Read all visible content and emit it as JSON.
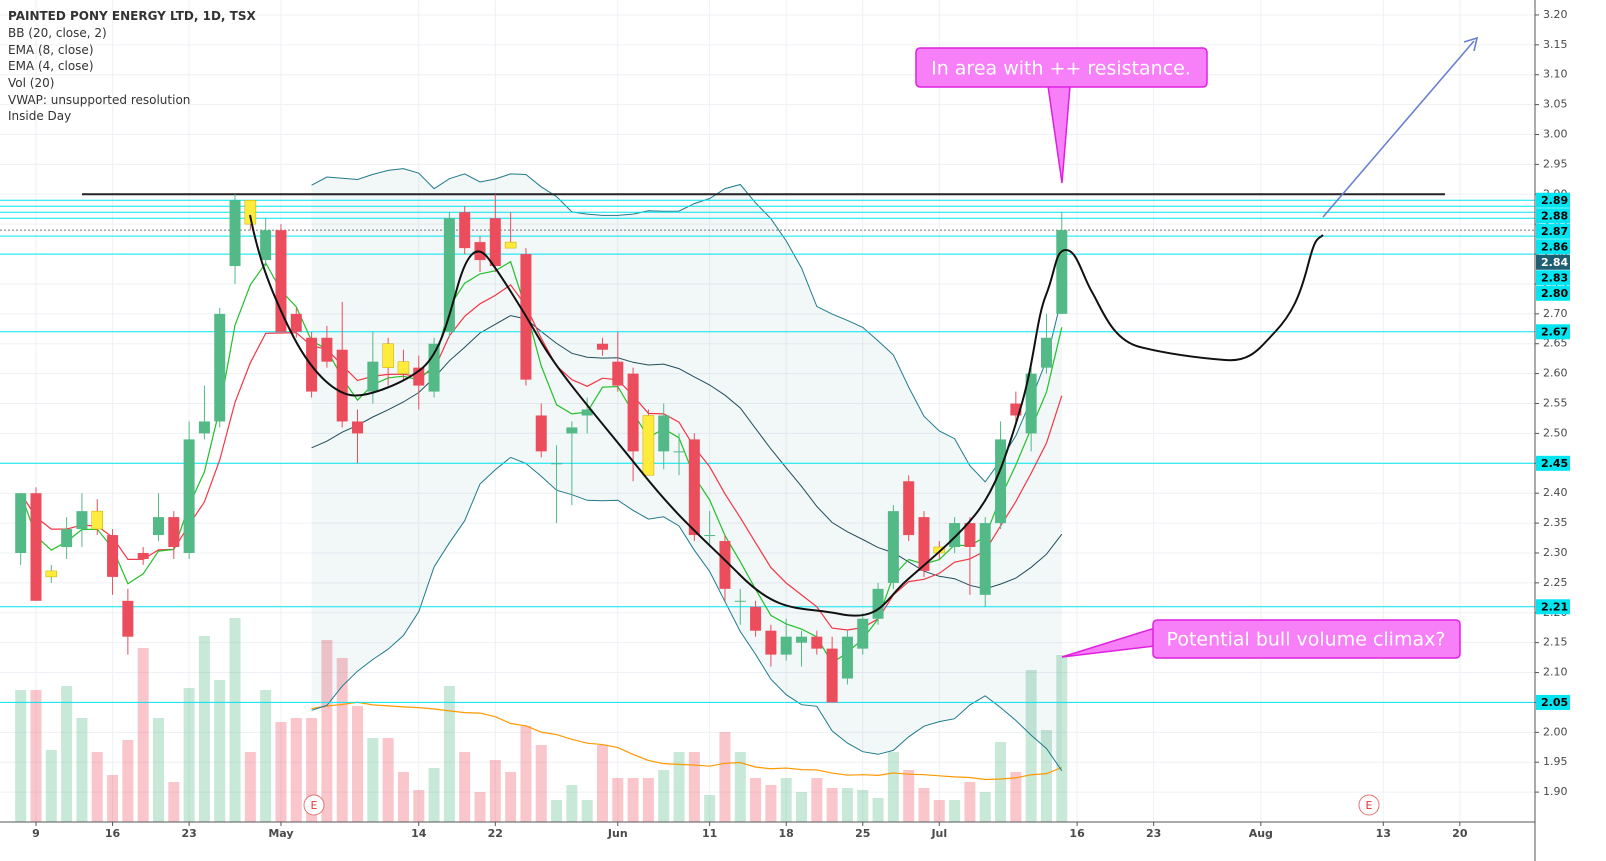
{
  "chart_data": {
    "type": "candlestick",
    "legend_lines": [
      "PAINTED PONY ENERGY LTD, 1D, TSX",
      "BB (20, close, 2)",
      "EMA (8, close)",
      "EMA (4, close)",
      "Vol (20)",
      "VWAP: unsupported resolution",
      "Inside Day"
    ],
    "annotations": [
      "In area with ++ resistance.",
      "Potential bull volume climax?"
    ],
    "earnings_marks": [
      "E",
      "E"
    ],
    "categories": [
      null,
      "9",
      null,
      null,
      null,
      null,
      "16",
      null,
      null,
      null,
      null,
      "23",
      null,
      null,
      null,
      null,
      null,
      "May",
      null,
      null,
      null,
      null,
      null,
      null,
      null,
      null,
      "14",
      null,
      null,
      null,
      null,
      "22",
      null,
      null,
      null,
      null,
      null,
      null,
      null,
      "Jun",
      null,
      null,
      null,
      null,
      null,
      "11",
      null,
      null,
      null,
      null,
      "18",
      null,
      null,
      null,
      null,
      "25",
      null,
      null,
      null,
      null,
      "Jul",
      null,
      null,
      null,
      null,
      null,
      null,
      null,
      null,
      "16",
      null,
      null,
      null,
      null,
      "23",
      null,
      null,
      null,
      null,
      null,
      null,
      "Aug",
      null,
      null,
      null,
      null,
      null,
      null,
      null,
      "13",
      null,
      null,
      null,
      null,
      "20",
      null,
      null,
      null,
      null
    ],
    "open": [
      2.3,
      2.4,
      2.26,
      2.31,
      2.34,
      2.37,
      2.33,
      2.22,
      2.3,
      2.33,
      2.36,
      2.3,
      2.5,
      2.52,
      2.78,
      2.89,
      2.79,
      2.84,
      2.7,
      2.66,
      2.66,
      2.64,
      2.52,
      2.57,
      2.65,
      2.62,
      2.61,
      2.57,
      2.67,
      2.87,
      2.82,
      2.86,
      2.82,
      2.8,
      2.53,
      2.45,
      2.5,
      2.53,
      2.65,
      2.62,
      2.6,
      2.53,
      2.47,
      2.47,
      2.49,
      2.33,
      2.32,
      2.22,
      2.21,
      2.17,
      2.13,
      2.15,
      2.16,
      2.14,
      2.09,
      2.14,
      2.19,
      2.25,
      2.42,
      2.36,
      2.31,
      2.31,
      2.35,
      2.23,
      2.35,
      2.55,
      2.5,
      2.61,
      2.7,
      null,
      null,
      null,
      null,
      null,
      null,
      null,
      null,
      null,
      null,
      null,
      null,
      null,
      null,
      null,
      null,
      null,
      null,
      null,
      null,
      null,
      null,
      null,
      null,
      null,
      null,
      null,
      null,
      null,
      null
    ],
    "high": [
      2.4,
      2.41,
      2.28,
      2.36,
      2.4,
      2.39,
      2.34,
      2.24,
      2.31,
      2.4,
      2.37,
      2.52,
      2.58,
      2.71,
      2.9,
      2.89,
      2.86,
      2.85,
      2.71,
      2.67,
      2.68,
      2.72,
      2.54,
      2.67,
      2.66,
      2.64,
      2.63,
      2.66,
      2.87,
      2.88,
      2.83,
      2.9,
      2.87,
      2.81,
      2.55,
      2.48,
      2.52,
      2.56,
      2.66,
      2.67,
      2.61,
      2.54,
      2.55,
      2.5,
      2.5,
      2.37,
      2.33,
      2.24,
      2.22,
      2.18,
      2.19,
      2.17,
      2.17,
      2.16,
      2.17,
      2.2,
      2.25,
      2.38,
      2.43,
      2.37,
      2.32,
      2.36,
      2.36,
      2.36,
      2.52,
      2.57,
      2.61,
      2.7,
      2.87,
      null,
      null,
      null,
      null,
      null,
      null,
      null,
      null,
      null,
      null,
      null,
      null,
      null,
      null,
      null,
      null,
      null,
      null,
      null,
      null,
      null,
      null,
      null,
      null,
      null,
      null,
      null,
      null,
      null,
      null
    ],
    "low": [
      2.28,
      2.22,
      2.25,
      2.29,
      2.31,
      2.33,
      2.23,
      2.13,
      2.28,
      2.32,
      2.29,
      2.29,
      2.49,
      2.51,
      2.75,
      2.84,
      2.78,
      2.67,
      2.66,
      2.56,
      2.61,
      2.51,
      2.45,
      2.55,
      2.58,
      2.59,
      2.54,
      2.56,
      2.66,
      2.8,
      2.77,
      2.77,
      2.81,
      2.58,
      2.46,
      2.35,
      2.38,
      2.5,
      2.63,
      2.57,
      2.42,
      2.43,
      2.44,
      2.43,
      2.32,
      2.31,
      2.22,
      2.18,
      2.16,
      2.11,
      2.12,
      2.11,
      2.13,
      2.05,
      2.08,
      2.13,
      2.18,
      2.24,
      2.32,
      2.26,
      2.29,
      2.3,
      2.23,
      2.21,
      2.34,
      2.52,
      2.47,
      2.6,
      2.7,
      null,
      null,
      null,
      null,
      null,
      null,
      null,
      null,
      null,
      null,
      null,
      null,
      null,
      null,
      null,
      null,
      null,
      null,
      null,
      null,
      null,
      null,
      null,
      null,
      null,
      null,
      null,
      null,
      null,
      null
    ],
    "close": [
      2.4,
      2.22,
      2.27,
      2.34,
      2.37,
      2.34,
      2.26,
      2.16,
      2.29,
      2.36,
      2.31,
      2.49,
      2.52,
      2.7,
      2.89,
      2.85,
      2.84,
      2.67,
      2.67,
      2.57,
      2.62,
      2.52,
      2.5,
      2.62,
      2.61,
      2.6,
      2.58,
      2.65,
      2.86,
      2.81,
      2.79,
      2.78,
      2.81,
      2.59,
      2.47,
      2.45,
      2.51,
      2.54,
      2.64,
      2.58,
      2.47,
      2.43,
      2.53,
      2.47,
      2.33,
      2.33,
      2.24,
      2.22,
      2.17,
      2.13,
      2.16,
      2.16,
      2.14,
      2.05,
      2.16,
      2.19,
      2.24,
      2.37,
      2.33,
      2.27,
      2.3,
      2.35,
      2.31,
      2.35,
      2.49,
      2.53,
      2.6,
      2.66,
      2.84,
      null,
      null,
      null,
      null,
      null,
      null,
      null,
      null,
      null,
      null,
      null,
      null,
      null,
      null,
      null,
      null,
      null,
      null,
      null,
      null,
      null,
      null,
      null,
      null,
      null,
      null,
      null,
      null,
      null,
      null
    ],
    "volume": [
      132,
      132,
      72,
      136,
      104,
      70,
      47,
      82,
      174,
      104,
      40,
      134,
      186,
      142,
      204,
      70,
      132,
      100,
      104,
      104,
      182,
      164,
      116,
      84,
      84,
      50,
      32,
      54,
      136,
      70,
      30,
      62,
      50,
      96,
      77,
      22,
      37,
      22,
      77,
      44,
      44,
      44,
      52,
      70,
      70,
      27,
      90,
      70,
      44,
      37,
      44,
      30,
      44,
      34,
      34,
      32,
      24,
      70,
      52,
      34,
      22,
      22,
      40,
      30,
      80,
      50,
      152,
      92,
      167,
      null,
      null,
      null,
      null,
      null,
      null,
      null,
      null,
      null,
      null,
      null,
      null,
      null,
      null,
      null,
      null,
      null,
      null,
      null,
      null,
      null,
      null,
      null,
      null,
      null,
      null,
      null,
      null,
      null,
      null
    ],
    "ylim": [
      1.85,
      3.225
    ],
    "yticks": [
      {
        "value": 1.9,
        "label": "1.90"
      },
      1.95,
      {
        "value": 2.0,
        "label": "2.00"
      },
      2.05,
      {
        "value": 2.1,
        "label": "2.10"
      },
      2.15,
      {
        "value": 2.2,
        "label": "2.20"
      },
      2.25,
      {
        "value": 2.3,
        "label": "2.30"
      },
      2.35,
      {
        "value": 2.4,
        "label": "2.40"
      },
      2.45,
      {
        "value": 2.5,
        "label": "2.50"
      },
      2.55,
      {
        "value": 2.6,
        "label": "2.60"
      },
      2.65,
      {
        "value": 2.7,
        "label": "2.70"
      },
      2.75,
      {
        "value": 2.8,
        "label": "2.80"
      },
      2.85,
      {
        "value": 2.9,
        "label": "2.90"
      },
      2.95,
      {
        "value": 3.0,
        "label": "3.00"
      },
      3.05,
      {
        "value": 3.1,
        "label": "3.10"
      },
      3.15,
      {
        "value": 3.2,
        "label": "3.20"
      }
    ],
    "levels": [
      2.89,
      2.88,
      2.87,
      2.86,
      2.83,
      {
        "value": 2.8,
        "label": "2.80"
      },
      2.67,
      2.45,
      2.21,
      2.05
    ],
    "last_price": 2.84,
    "resistance": {
      "value": 2.9,
      "label": "2.90"
    },
    "grid": true,
    "colors": {
      "up": "#53b987",
      "down": "#eb4d5c",
      "inside": "#ffeb3b",
      "ema8": "#f23645",
      "ema4": "#22c02a",
      "bands": "#1f7a8c",
      "basis": "#1f4e5a",
      "volume_ma": "#ff9800",
      "level": "#00e5ef",
      "resistance": "#222222"
    }
  }
}
